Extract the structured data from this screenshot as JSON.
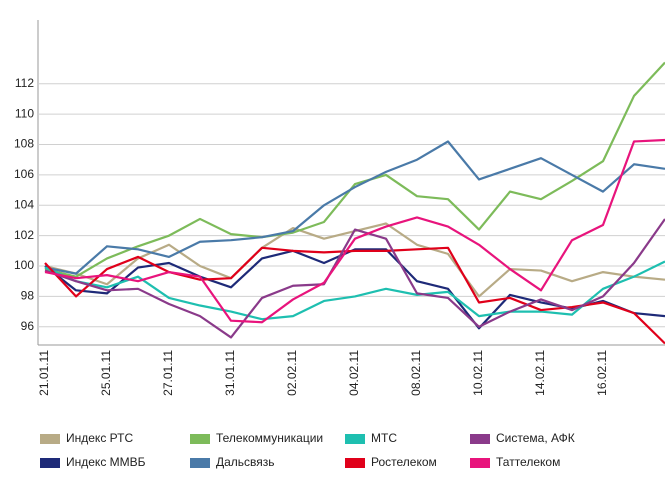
{
  "chart_data": {
    "type": "line",
    "categories": [
      "21.01.11",
      null,
      "25.01.11",
      null,
      "27.01.11",
      null,
      "31.01.11",
      null,
      "02.02.11",
      null,
      "04.02.11",
      null,
      "08.02.11",
      null,
      "10.02.11",
      null,
      "14.02.11",
      null,
      "16.02.11",
      null,
      null
    ],
    "series": [
      {
        "name": "Индекс РТС",
        "color": "#b8ab86",
        "values": [
          100,
          99.5,
          98.8,
          100.5,
          101.4,
          100,
          99.2,
          101.2,
          102.5,
          101.8,
          102.3,
          102.8,
          101.4,
          100.8,
          98,
          99.8,
          99.7,
          99,
          99.6,
          99.3,
          99.1
        ]
      },
      {
        "name": "Индекс ММВБ",
        "color": "#1e2a78",
        "values": [
          100,
          98.4,
          98.2,
          99.9,
          100.2,
          99.3,
          98.6,
          100.5,
          101,
          100.2,
          101.1,
          101.1,
          99,
          98.5,
          95.9,
          98.1,
          97.6,
          97.2,
          97.7,
          96.9,
          96.7
        ]
      },
      {
        "name": "Телекоммуникации",
        "color": "#7dbb5a",
        "values": [
          99.8,
          99.3,
          100.5,
          101.3,
          102,
          103.1,
          102.1,
          101.9,
          102.2,
          102.9,
          105.4,
          106,
          104.6,
          104.4,
          102.4,
          104.9,
          104.4,
          105.6,
          106.9,
          111.2,
          113.4
        ]
      },
      {
        "name": "Дальсвязь",
        "color": "#4a7aa8",
        "values": [
          99.9,
          99.5,
          101.3,
          101.1,
          100.6,
          101.6,
          101.7,
          101.9,
          102.3,
          104,
          105.2,
          106.2,
          107,
          108.2,
          105.7,
          106.4,
          107.1,
          106,
          104.9,
          106.7,
          106.4
        ]
      },
      {
        "name": "МТС",
        "color": "#1ebfb0",
        "values": [
          99.9,
          99,
          98.6,
          99.3,
          97.9,
          97.4,
          97,
          96.5,
          96.7,
          97.7,
          98,
          98.5,
          98.1,
          98.3,
          96.7,
          97,
          97,
          96.8,
          98.5,
          99.3,
          100.3
        ]
      },
      {
        "name": "Ростелеком",
        "color": "#e0001a",
        "values": [
          100.2,
          98,
          99.8,
          100.6,
          99.6,
          99.1,
          99.2,
          101.2,
          101,
          100.9,
          101,
          101,
          101.1,
          101.2,
          97.6,
          97.9,
          97.1,
          97.3,
          97.6,
          96.9,
          94.9
        ]
      },
      {
        "name": "Система, АФК",
        "color": "#8a3a8a",
        "values": [
          99.7,
          99,
          98.4,
          98.5,
          97.5,
          96.7,
          95.3,
          97.9,
          98.7,
          98.8,
          102.4,
          101.8,
          98.2,
          97.9,
          96,
          97,
          97.8,
          97.1,
          98,
          100.2,
          103.1
        ]
      },
      {
        "name": "Таттелеком",
        "color": "#e8147c",
        "values": [
          99.6,
          99.2,
          99.4,
          99,
          99.6,
          99.3,
          96.4,
          96.3,
          97.8,
          98.9,
          101.8,
          102.6,
          103.2,
          102.6,
          101.4,
          99.8,
          98.4,
          101.7,
          102.7,
          108.2,
          108.3
        ]
      }
    ],
    "ylim": [
      94.8,
      116.2
    ],
    "yticks": [
      96,
      98,
      100,
      102,
      104,
      106,
      108,
      110,
      112
    ],
    "grid": true
  }
}
